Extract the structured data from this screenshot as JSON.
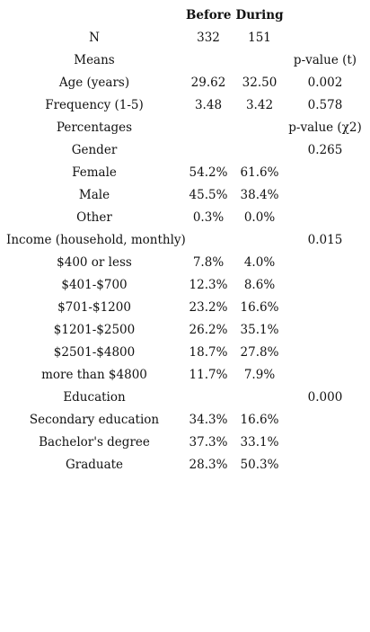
{
  "header": {
    "label": "",
    "before": "Before",
    "during": "During",
    "p": ""
  },
  "rows": [
    {
      "label": "N",
      "before": "332",
      "during": "151",
      "p": ""
    },
    {
      "label": "Means",
      "before": "",
      "during": "",
      "p": "p-value (t)"
    },
    {
      "label": "Age (years)",
      "before": "29.62",
      "during": "32.50",
      "p": "0.002"
    },
    {
      "label": "Frequency (1-5)",
      "before": "3.48",
      "during": "3.42",
      "p": "0.578"
    },
    {
      "label": "Percentages",
      "before": "",
      "during": "",
      "p": "p-value (χ2)"
    },
    {
      "label": "Gender",
      "before": "",
      "during": "",
      "p": "0.265"
    },
    {
      "label": "Female",
      "before": "54.2%",
      "during": "61.6%",
      "p": ""
    },
    {
      "label": "Male",
      "before": "45.5%",
      "during": "38.4%",
      "p": ""
    },
    {
      "label": "Other",
      "before": "0.3%",
      "during": "0.0%",
      "p": ""
    },
    {
      "label": "Income (household, monthly)",
      "before": "",
      "during": "",
      "p": "0.015"
    },
    {
      "label": "$400 or less",
      "before": "7.8%",
      "during": "4.0%",
      "p": ""
    },
    {
      "label": "$401-$700",
      "before": "12.3%",
      "during": "8.6%",
      "p": ""
    },
    {
      "label": "$701-$1200",
      "before": "23.2%",
      "during": "16.6%",
      "p": ""
    },
    {
      "label": "$1201-$2500",
      "before": "26.2%",
      "during": "35.1%",
      "p": ""
    },
    {
      "label": "$2501-$4800",
      "before": "18.7%",
      "during": "27.8%",
      "p": ""
    },
    {
      "label": "more than $4800",
      "before": "11.7%",
      "during": "7.9%",
      "p": ""
    },
    {
      "label": "Education",
      "before": "",
      "during": "",
      "p": "0.000"
    },
    {
      "label": "Secondary education",
      "before": "34.3%",
      "during": "16.6%",
      "p": ""
    },
    {
      "label": "Bachelor's degree",
      "before": "37.3%",
      "during": "33.1%",
      "p": ""
    },
    {
      "label": "Graduate",
      "before": "28.3%",
      "during": "50.3%",
      "p": ""
    }
  ]
}
